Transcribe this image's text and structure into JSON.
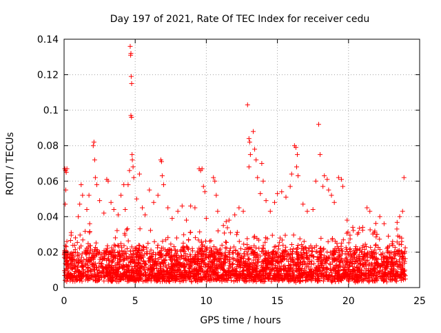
{
  "chart_data": {
    "type": "scatter",
    "title": "Day 197 of 2021, Rate Of TEC Index for receiver cedu",
    "xlabel": "GPS time / hours",
    "ylabel": "ROTI / TECUs",
    "xlim": [
      0,
      25
    ],
    "ylim": [
      0,
      0.14
    ],
    "x_ticks": [
      0,
      5,
      10,
      15,
      20,
      25
    ],
    "x_tick_labels": [
      "0",
      "5",
      "10",
      "15",
      "20",
      "25"
    ],
    "y_ticks": [
      0,
      0.02,
      0.04,
      0.06,
      0.08,
      0.1,
      0.12,
      0.14
    ],
    "y_tick_labels": [
      "0",
      "0.02",
      "0.04",
      "0.06",
      "0.08",
      "0.1",
      "0.12",
      "0.14"
    ],
    "grid": true,
    "marker": "+",
    "color": "#ff0000",
    "series": [
      {
        "name": "ROTI",
        "description": "dense baseline ~0.003-0.02 TECU/s throughout 0-24 h with spikes",
        "points": [
          [
            0.05,
            0.067
          ],
          [
            0.1,
            0.066
          ],
          [
            0.15,
            0.065
          ],
          [
            0.2,
            0.067
          ],
          [
            0.08,
            0.047
          ],
          [
            0.12,
            0.055
          ],
          [
            0.2,
            0.026
          ],
          [
            0.5,
            0.031
          ],
          [
            0.8,
            0.028
          ],
          [
            1.0,
            0.04
          ],
          [
            1.1,
            0.047
          ],
          [
            1.2,
            0.058
          ],
          [
            1.3,
            0.052
          ],
          [
            1.6,
            0.044
          ],
          [
            1.75,
            0.052
          ],
          [
            1.8,
            0.036
          ],
          [
            2.05,
            0.08
          ],
          [
            2.1,
            0.082
          ],
          [
            2.15,
            0.072
          ],
          [
            2.2,
            0.062
          ],
          [
            2.3,
            0.058
          ],
          [
            2.5,
            0.049
          ],
          [
            2.8,
            0.042
          ],
          [
            3.0,
            0.061
          ],
          [
            3.1,
            0.06
          ],
          [
            3.3,
            0.048
          ],
          [
            3.5,
            0.044
          ],
          [
            3.8,
            0.041
          ],
          [
            4.0,
            0.052
          ],
          [
            4.2,
            0.058
          ],
          [
            4.3,
            0.044
          ],
          [
            4.5,
            0.058
          ],
          [
            4.6,
            0.066
          ],
          [
            4.65,
            0.136
          ],
          [
            4.68,
            0.131
          ],
          [
            4.7,
            0.132
          ],
          [
            4.72,
            0.119
          ],
          [
            4.75,
            0.115
          ],
          [
            4.7,
            0.097
          ],
          [
            4.74,
            0.096
          ],
          [
            4.78,
            0.075
          ],
          [
            4.8,
            0.072
          ],
          [
            4.85,
            0.068
          ],
          [
            4.9,
            0.062
          ],
          [
            5.1,
            0.05
          ],
          [
            5.3,
            0.064
          ],
          [
            5.5,
            0.045
          ],
          [
            5.7,
            0.041
          ],
          [
            6.0,
            0.055
          ],
          [
            6.3,
            0.048
          ],
          [
            6.6,
            0.052
          ],
          [
            6.8,
            0.072
          ],
          [
            6.85,
            0.071
          ],
          [
            6.9,
            0.063
          ],
          [
            7.0,
            0.058
          ],
          [
            7.3,
            0.045
          ],
          [
            7.6,
            0.039
          ],
          [
            8.0,
            0.043
          ],
          [
            8.3,
            0.046
          ],
          [
            8.6,
            0.038
          ],
          [
            8.9,
            0.046
          ],
          [
            9.2,
            0.045
          ],
          [
            9.5,
            0.067
          ],
          [
            9.6,
            0.066
          ],
          [
            9.7,
            0.067
          ],
          [
            9.8,
            0.057
          ],
          [
            9.9,
            0.054
          ],
          [
            10.0,
            0.039
          ],
          [
            10.5,
            0.062
          ],
          [
            10.6,
            0.06
          ],
          [
            10.7,
            0.052
          ],
          [
            10.8,
            0.043
          ],
          [
            11.2,
            0.035
          ],
          [
            11.6,
            0.038
          ],
          [
            12.0,
            0.041
          ],
          [
            12.3,
            0.045
          ],
          [
            12.6,
            0.043
          ],
          [
            12.9,
            0.103
          ],
          [
            13.0,
            0.084
          ],
          [
            13.05,
            0.082
          ],
          [
            13.1,
            0.075
          ],
          [
            13.0,
            0.068
          ],
          [
            13.3,
            0.088
          ],
          [
            13.4,
            0.078
          ],
          [
            13.5,
            0.072
          ],
          [
            13.6,
            0.062
          ],
          [
            13.8,
            0.053
          ],
          [
            13.9,
            0.07
          ],
          [
            14.0,
            0.06
          ],
          [
            14.2,
            0.049
          ],
          [
            14.5,
            0.043
          ],
          [
            14.8,
            0.048
          ],
          [
            15.0,
            0.053
          ],
          [
            15.3,
            0.054
          ],
          [
            15.6,
            0.051
          ],
          [
            15.9,
            0.057
          ],
          [
            16.0,
            0.064
          ],
          [
            16.2,
            0.08
          ],
          [
            16.3,
            0.079
          ],
          [
            16.4,
            0.075
          ],
          [
            16.35,
            0.068
          ],
          [
            16.45,
            0.063
          ],
          [
            16.8,
            0.047
          ],
          [
            17.1,
            0.043
          ],
          [
            17.5,
            0.044
          ],
          [
            17.7,
            0.06
          ],
          [
            17.9,
            0.092
          ],
          [
            18.0,
            0.075
          ],
          [
            18.2,
            0.057
          ],
          [
            18.3,
            0.063
          ],
          [
            18.5,
            0.061
          ],
          [
            18.6,
            0.055
          ],
          [
            18.8,
            0.052
          ],
          [
            19.0,
            0.048
          ],
          [
            19.3,
            0.062
          ],
          [
            19.5,
            0.061
          ],
          [
            19.6,
            0.057
          ],
          [
            19.9,
            0.038
          ],
          [
            20.3,
            0.034
          ],
          [
            20.7,
            0.031
          ],
          [
            21.0,
            0.034
          ],
          [
            21.3,
            0.045
          ],
          [
            21.5,
            0.043
          ],
          [
            21.8,
            0.031
          ],
          [
            22.2,
            0.04
          ],
          [
            22.5,
            0.036
          ],
          [
            22.8,
            0.029
          ],
          [
            23.1,
            0.026
          ],
          [
            23.4,
            0.033
          ],
          [
            23.6,
            0.04
          ],
          [
            23.8,
            0.043
          ],
          [
            23.9,
            0.062
          ]
        ]
      }
    ]
  }
}
